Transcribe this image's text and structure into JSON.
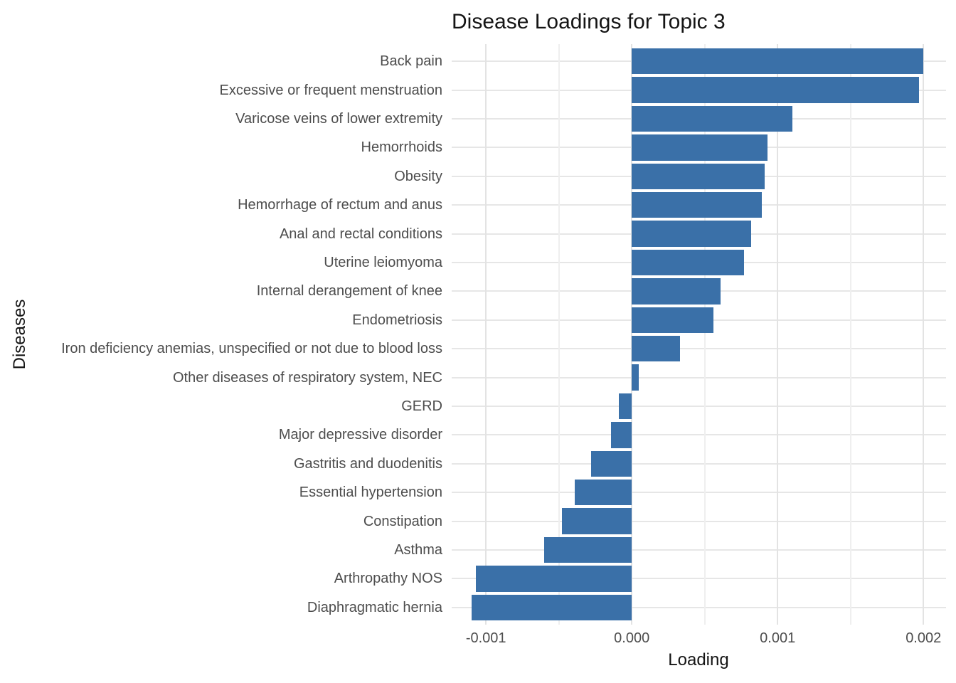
{
  "title": "Disease Loadings for Topic 3",
  "chart_data": {
    "type": "bar",
    "orientation": "horizontal",
    "title": "Disease Loadings for Topic 3",
    "xlabel": "Loading",
    "ylabel": "Diseases",
    "categories": [
      "Back pain",
      "Excessive or frequent menstruation",
      "Varicose veins of lower extremity",
      "Hemorrhoids",
      "Obesity",
      "Hemorrhage of rectum and anus",
      "Anal and rectal conditions",
      "Uterine leiomyoma",
      "Internal derangement of knee",
      "Endometriosis",
      "Iron deficiency anemias, unspecified or not due to blood loss",
      "Other diseases of respiratory system, NEC",
      "GERD",
      "Major depressive disorder",
      "Gastritis and duodenitis",
      "Essential hypertension",
      "Constipation",
      "Asthma",
      "Arthropathy NOS",
      "Diaphragmatic hernia"
    ],
    "values": [
      0.002,
      0.00197,
      0.0011,
      0.00093,
      0.00091,
      0.00089,
      0.00082,
      0.00077,
      0.00061,
      0.00056,
      0.00033,
      5e-05,
      -9e-05,
      -0.00014,
      -0.00028,
      -0.00039,
      -0.00048,
      -0.0006,
      -0.00107,
      -0.0011
    ],
    "xlim": [
      -0.001235,
      0.002155
    ],
    "x_ticks": [
      -0.001,
      0.0,
      0.001,
      0.002
    ],
    "x_tick_labels": [
      "-0.001",
      "0.000",
      "0.001",
      "0.002"
    ],
    "x_minor_ticks": [
      -0.0005,
      0.0005,
      0.0015
    ],
    "bar_color": "#3a70a8",
    "bar_width_fraction": 0.9,
    "category_expansion": 0.6,
    "grid": true,
    "legend_position": "none",
    "background": "#ffffff",
    "grid_major_color": "#e3e3e3",
    "grid_minor_color": "#efefef",
    "tick_label_color": "#4d4d4d",
    "text_color": "#151515"
  }
}
